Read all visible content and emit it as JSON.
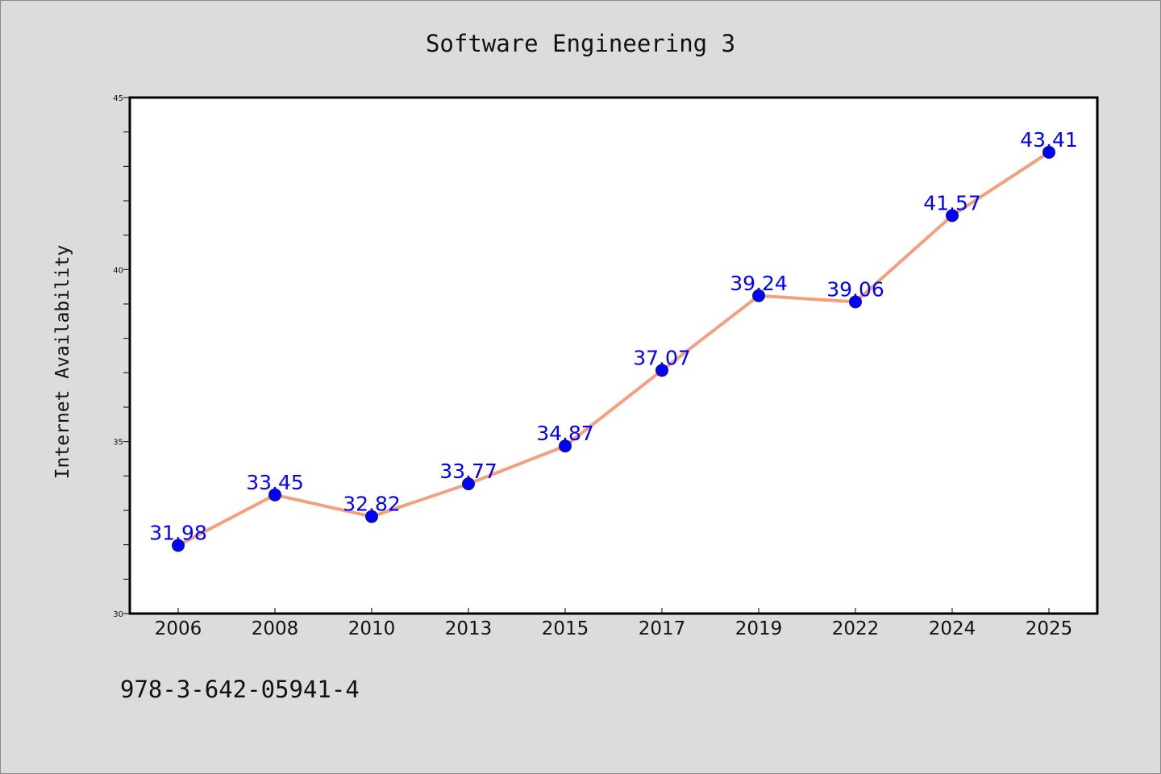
{
  "chart_data": {
    "type": "line",
    "title": "Software Engineering 3",
    "xlabel": "",
    "ylabel": "Internet Availability",
    "categories": [
      "2006",
      "2008",
      "2010",
      "2013",
      "2015",
      "2017",
      "2019",
      "2022",
      "2024",
      "2025"
    ],
    "series": [
      {
        "values": [
          31.98,
          33.45,
          32.82,
          33.77,
          34.87,
          37.07,
          39.24,
          39.06,
          41.57,
          43.41
        ],
        "line_color": "#f4a07e",
        "marker_color": "#0000ff"
      }
    ],
    "data_labels": [
      "31.98",
      "33.45",
      "32.82",
      "33.77",
      "34.87",
      "37.07",
      "39.24",
      "39.06",
      "41.57",
      "43.41"
    ],
    "data_label_color": "#0000ff",
    "ylim": [
      30,
      45
    ],
    "y_ticks": [
      "30",
      "35",
      "40",
      "45"
    ],
    "y_minor_step": 1,
    "grid": false,
    "legend": "none"
  },
  "footnote": "978-3-642-05941-4",
  "colors": {
    "background": "#dcdcdc",
    "plot_background": "#ffffff",
    "axis": "#000000"
  }
}
